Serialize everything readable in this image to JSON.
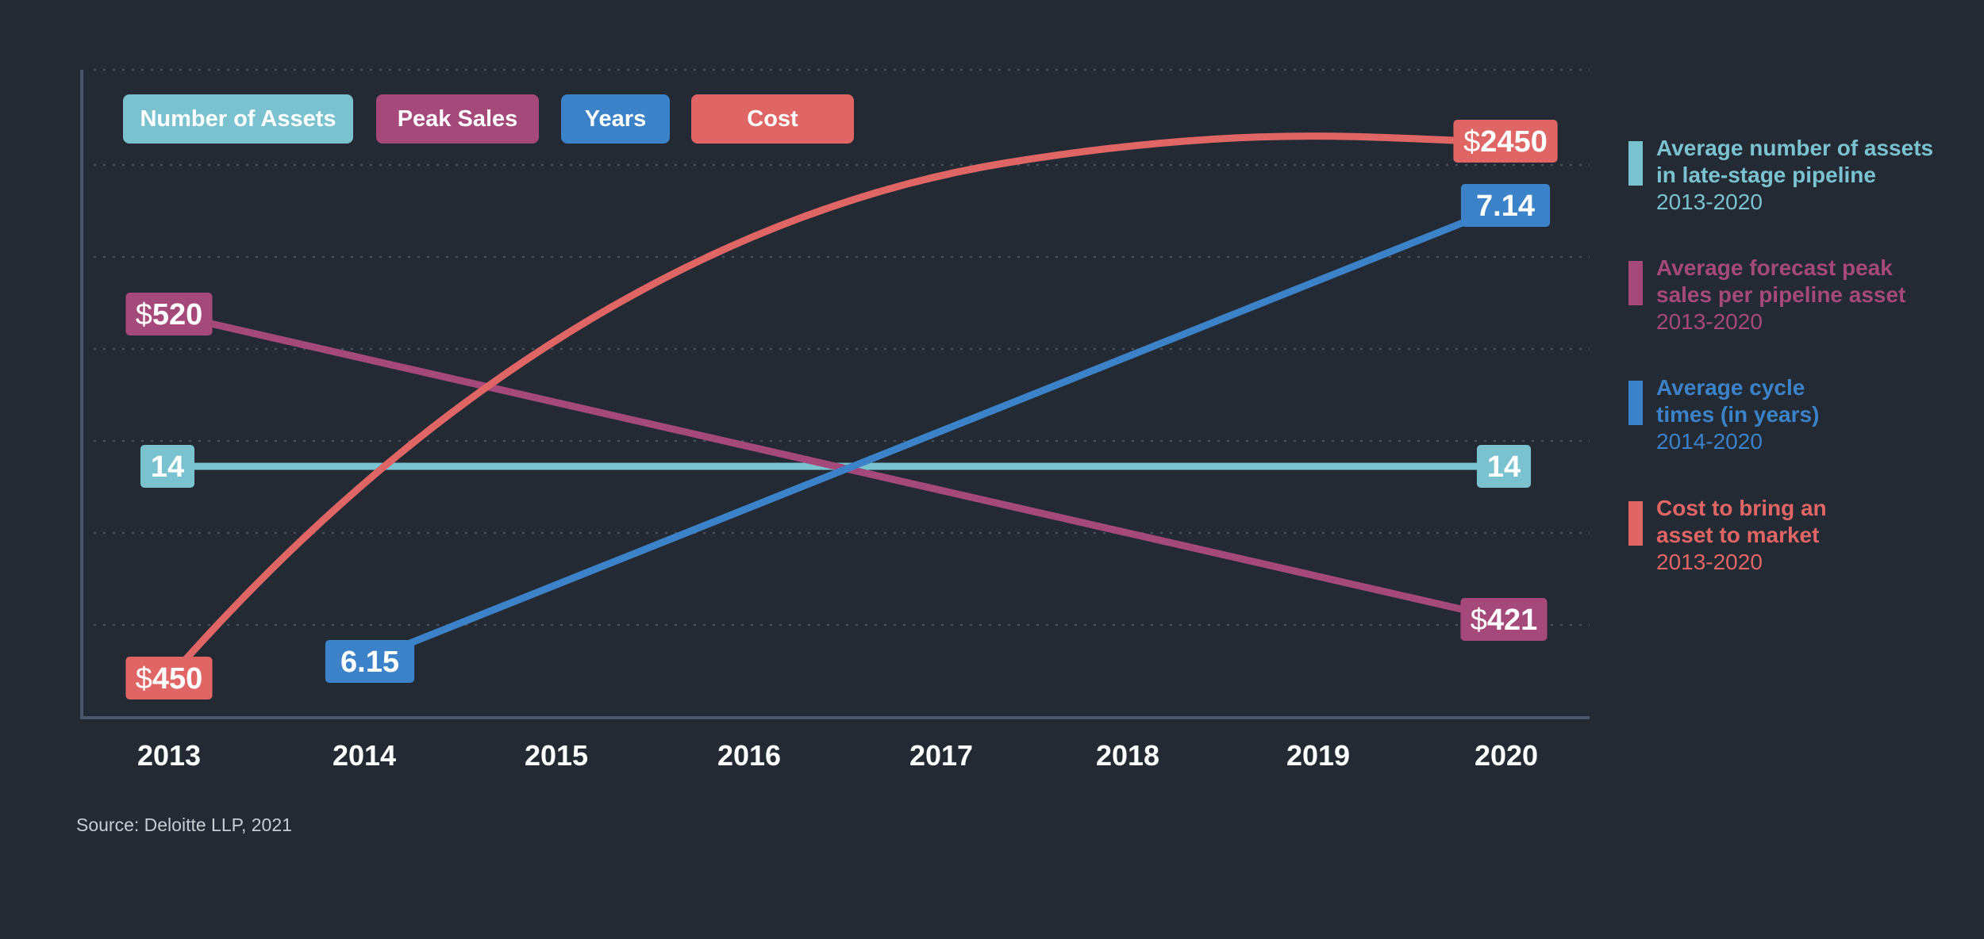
{
  "chart_data": {
    "type": "line",
    "categories": [
      "2013",
      "2014",
      "2015",
      "2016",
      "2017",
      "2018",
      "2019",
      "2020"
    ],
    "grid": true,
    "series": [
      {
        "name": "Number of Assets",
        "color": "#7ac2cf",
        "x": [
          "2013",
          "2020"
        ],
        "values": [
          14,
          14
        ],
        "start_label": "14",
        "end_label": "14",
        "legend_title": "Average number of assets in late-stage pipeline",
        "range": "2013-2020"
      },
      {
        "name": "Peak Sales",
        "color": "#a5497a",
        "x": [
          "2013",
          "2020"
        ],
        "values": [
          520,
          421
        ],
        "start_label": "520",
        "end_label": "421",
        "currency": "$",
        "legend_title": "Average forecast peak sales per pipeline asset",
        "range": "2013-2020"
      },
      {
        "name": "Years",
        "color": "#3c82c8",
        "x": [
          "2014",
          "2020"
        ],
        "values": [
          6.15,
          7.14
        ],
        "start_label": "6.15",
        "end_label": "7.14",
        "legend_title": "Average cycle times (in years)",
        "range": "2014-2020"
      },
      {
        "name": "Cost",
        "color": "#e06565",
        "x": [
          "2013",
          "2020"
        ],
        "values": [
          450,
          2450
        ],
        "start_label": "450",
        "end_label": "2450",
        "currency": "$",
        "legend_title": "Cost to bring an asset to market",
        "range": "2013-2020"
      }
    ]
  },
  "legend": {
    "assets_label": "Number of Assets",
    "sales_label": "Peak Sales",
    "years_label": "Years",
    "cost_label": "Cost"
  },
  "side_legend": [
    {
      "title_line1": "Average number of assets",
      "title_line2": "in late-stage pipeline",
      "range": "2013-2020",
      "color": "#7ac2cf"
    },
    {
      "title_line1": "Average forecast peak",
      "title_line2": "sales per pipeline asset",
      "range": "2013-2020",
      "color": "#a5497a"
    },
    {
      "title_line1": "Average cycle",
      "title_line2": "times (in years)",
      "range": "2014-2020",
      "color": "#3c82c8"
    },
    {
      "title_line1": "Cost to bring an",
      "title_line2": "asset to market",
      "range": "2013-2020",
      "color": "#e06565"
    }
  ],
  "source": "Source: Deloitte LLP, 2021"
}
